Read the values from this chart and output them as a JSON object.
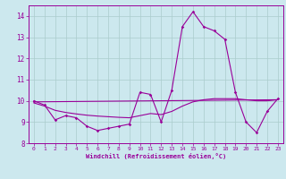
{
  "xlabel": "Windchill (Refroidissement éolien,°C)",
  "background_color": "#cce8ee",
  "grid_color": "#aacccc",
  "line_color": "#990099",
  "xlim": [
    -0.5,
    23.5
  ],
  "ylim": [
    8,
    14.5
  ],
  "yticks": [
    8,
    9,
    10,
    11,
    12,
    13,
    14
  ],
  "xticks": [
    0,
    1,
    2,
    3,
    4,
    5,
    6,
    7,
    8,
    9,
    10,
    11,
    12,
    13,
    14,
    15,
    16,
    17,
    18,
    19,
    20,
    21,
    22,
    23
  ],
  "series1_x": [
    0,
    1,
    2,
    3,
    4,
    5,
    6,
    7,
    8,
    9,
    10,
    11,
    12,
    13,
    14,
    15,
    16,
    17,
    18,
    19,
    20,
    21,
    22,
    23
  ],
  "series1_y": [
    10.0,
    9.8,
    9.1,
    9.3,
    9.2,
    8.8,
    8.6,
    8.7,
    8.8,
    8.9,
    10.4,
    10.3,
    9.0,
    10.5,
    13.5,
    14.2,
    13.5,
    13.3,
    12.9,
    10.4,
    9.0,
    8.5,
    9.5,
    10.1
  ],
  "series2_x": [
    0,
    1,
    2,
    3,
    4,
    5,
    6,
    7,
    8,
    9,
    10,
    11,
    12,
    13,
    14,
    15,
    16,
    17,
    18,
    19,
    20,
    21,
    22,
    23
  ],
  "series2_y": [
    9.9,
    9.75,
    9.55,
    9.45,
    9.38,
    9.32,
    9.28,
    9.25,
    9.22,
    9.2,
    9.3,
    9.4,
    9.35,
    9.5,
    9.75,
    9.95,
    10.05,
    10.1,
    10.1,
    10.1,
    10.05,
    10.0,
    10.0,
    10.05
  ],
  "series3_x": [
    0,
    23
  ],
  "series3_y": [
    9.95,
    10.05
  ]
}
